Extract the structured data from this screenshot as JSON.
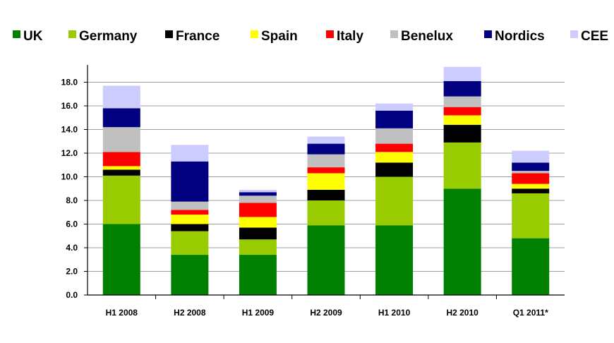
{
  "chart_data": {
    "type": "bar",
    "stacked": true,
    "title": "",
    "xlabel": "",
    "ylabel": "",
    "ylim": [
      0,
      19.5
    ],
    "y_ticks": [
      "0.0",
      "2.0",
      "4.0",
      "6.0",
      "8.0",
      "10.0",
      "12.0",
      "14.0",
      "16.0",
      "18.0"
    ],
    "grid": true,
    "legend_position": "top",
    "categories": [
      "H1 2008",
      "H2 2008",
      "H1 2009",
      "H2 2009",
      "H1 2010",
      "H2 2010",
      "Q1 2011*"
    ],
    "series": [
      {
        "name": "UK",
        "color": "#008000",
        "values": [
          6.0,
          3.4,
          3.4,
          5.9,
          5.9,
          9.0,
          4.8
        ]
      },
      {
        "name": "Germany",
        "color": "#99cc00",
        "values": [
          4.1,
          2.0,
          1.3,
          2.1,
          4.1,
          3.9,
          3.8
        ]
      },
      {
        "name": "France",
        "color": "#000000",
        "values": [
          0.5,
          0.6,
          1.0,
          0.9,
          1.2,
          1.5,
          0.4
        ]
      },
      {
        "name": "Spain",
        "color": "#ffff00",
        "values": [
          0.3,
          0.8,
          0.9,
          1.4,
          0.9,
          0.8,
          0.4
        ]
      },
      {
        "name": "Italy",
        "color": "#ff0000",
        "values": [
          1.2,
          0.4,
          1.2,
          0.5,
          0.7,
          0.7,
          0.9
        ]
      },
      {
        "name": "Benelux",
        "color": "#c0c0c0",
        "values": [
          2.1,
          0.7,
          0.6,
          1.1,
          1.3,
          0.9,
          0.2
        ]
      },
      {
        "name": "Nordics",
        "color": "#000080",
        "values": [
          1.6,
          3.4,
          0.3,
          0.9,
          1.5,
          1.3,
          0.7
        ]
      },
      {
        "name": "CEE",
        "color": "#ccccff",
        "values": [
          1.9,
          1.4,
          0.2,
          0.6,
          0.6,
          1.2,
          1.0
        ]
      }
    ]
  }
}
